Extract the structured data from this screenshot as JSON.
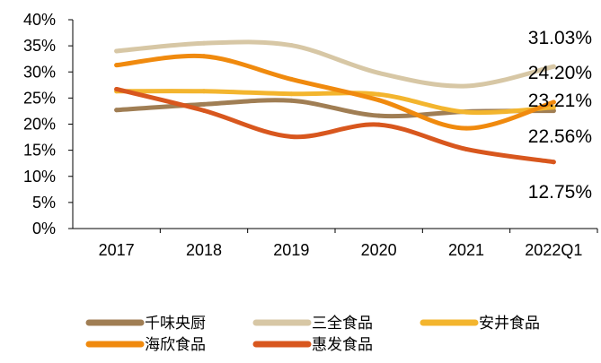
{
  "chart_data": {
    "type": "line",
    "categories": [
      "2017",
      "2018",
      "2019",
      "2020",
      "2021",
      "2022Q1"
    ],
    "yticks": [
      "0%",
      "5%",
      "10%",
      "15%",
      "20%",
      "25%",
      "30%",
      "35%",
      "40%"
    ],
    "ylim": [
      0,
      40
    ],
    "grid": false,
    "legend_position": "bottom",
    "series": [
      {
        "name": "千味央厨",
        "color": "#a07e54",
        "values": [
          22.7,
          23.8,
          24.5,
          21.6,
          22.4,
          22.56
        ]
      },
      {
        "name": "三全食品",
        "color": "#d7c7a5",
        "values": [
          34.0,
          35.5,
          35.1,
          29.8,
          27.3,
          31.03
        ]
      },
      {
        "name": "安井食品",
        "color": "#f3b52e",
        "values": [
          26.3,
          26.3,
          25.8,
          25.7,
          22.3,
          23.21
        ]
      },
      {
        "name": "海欣食品",
        "color": "#f08a0e",
        "values": [
          31.3,
          33.0,
          28.6,
          24.6,
          19.2,
          24.2
        ]
      },
      {
        "name": "惠发食品",
        "color": "#d8571e",
        "values": [
          26.7,
          22.6,
          17.6,
          19.9,
          15.2,
          12.75
        ]
      }
    ],
    "end_labels": [
      "31.03%",
      "24.20%",
      "23.21%",
      "22.56%",
      "12.75%"
    ]
  }
}
